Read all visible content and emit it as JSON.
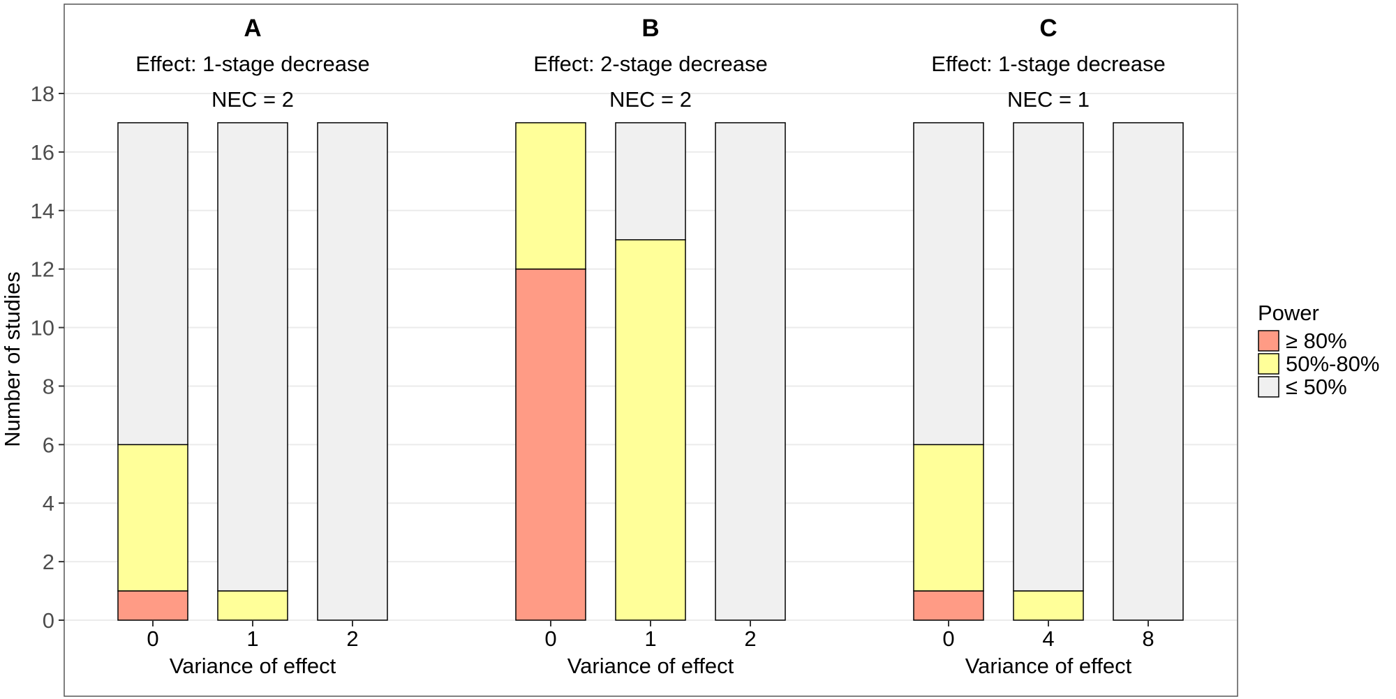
{
  "chart_data": {
    "type": "bar",
    "stacked": true,
    "ylabel": "Number of studies",
    "ylim": [
      0,
      18
    ],
    "yticks": [
      0,
      2,
      4,
      6,
      8,
      10,
      12,
      14,
      16,
      18
    ],
    "grid": true,
    "legend": {
      "title": "Power",
      "placement": "right",
      "entries": [
        {
          "label": "≥ 80%",
          "color": "#FF9B85"
        },
        {
          "label": "50%-80%",
          "color": "#FFFF99"
        },
        {
          "label": "≤ 50%",
          "color": "#F0F0F0"
        }
      ]
    },
    "panels": [
      {
        "tag": "A",
        "title": "Effect: 1-stage decrease",
        "subtitle": "NEC = 2",
        "xlabel": "Variance of effect",
        "categories": [
          "0",
          "1",
          "2"
        ],
        "series": [
          {
            "name": "≥ 80%",
            "values": [
              1,
              0,
              0
            ]
          },
          {
            "name": "50%-80%",
            "values": [
              5,
              1,
              0
            ]
          },
          {
            "name": "≤ 50%",
            "values": [
              11,
              16,
              17
            ]
          }
        ]
      },
      {
        "tag": "B",
        "title": "Effect: 2-stage decrease",
        "subtitle": "NEC = 2",
        "xlabel": "Variance of effect",
        "categories": [
          "0",
          "1",
          "2"
        ],
        "series": [
          {
            "name": "≥ 80%",
            "values": [
              12,
              0,
              0
            ]
          },
          {
            "name": "50%-80%",
            "values": [
              5,
              13,
              0
            ]
          },
          {
            "name": "≤ 50%",
            "values": [
              0,
              4,
              17
            ]
          }
        ]
      },
      {
        "tag": "C",
        "title": "Effect: 1-stage decrease",
        "subtitle": "NEC = 1",
        "xlabel": "Variance of effect",
        "categories": [
          "0",
          "4",
          "8"
        ],
        "series": [
          {
            "name": "≥ 80%",
            "values": [
              1,
              0,
              0
            ]
          },
          {
            "name": "50%-80%",
            "values": [
              5,
              1,
              0
            ]
          },
          {
            "name": "≤ 50%",
            "values": [
              11,
              16,
              17
            ]
          }
        ]
      }
    ]
  }
}
